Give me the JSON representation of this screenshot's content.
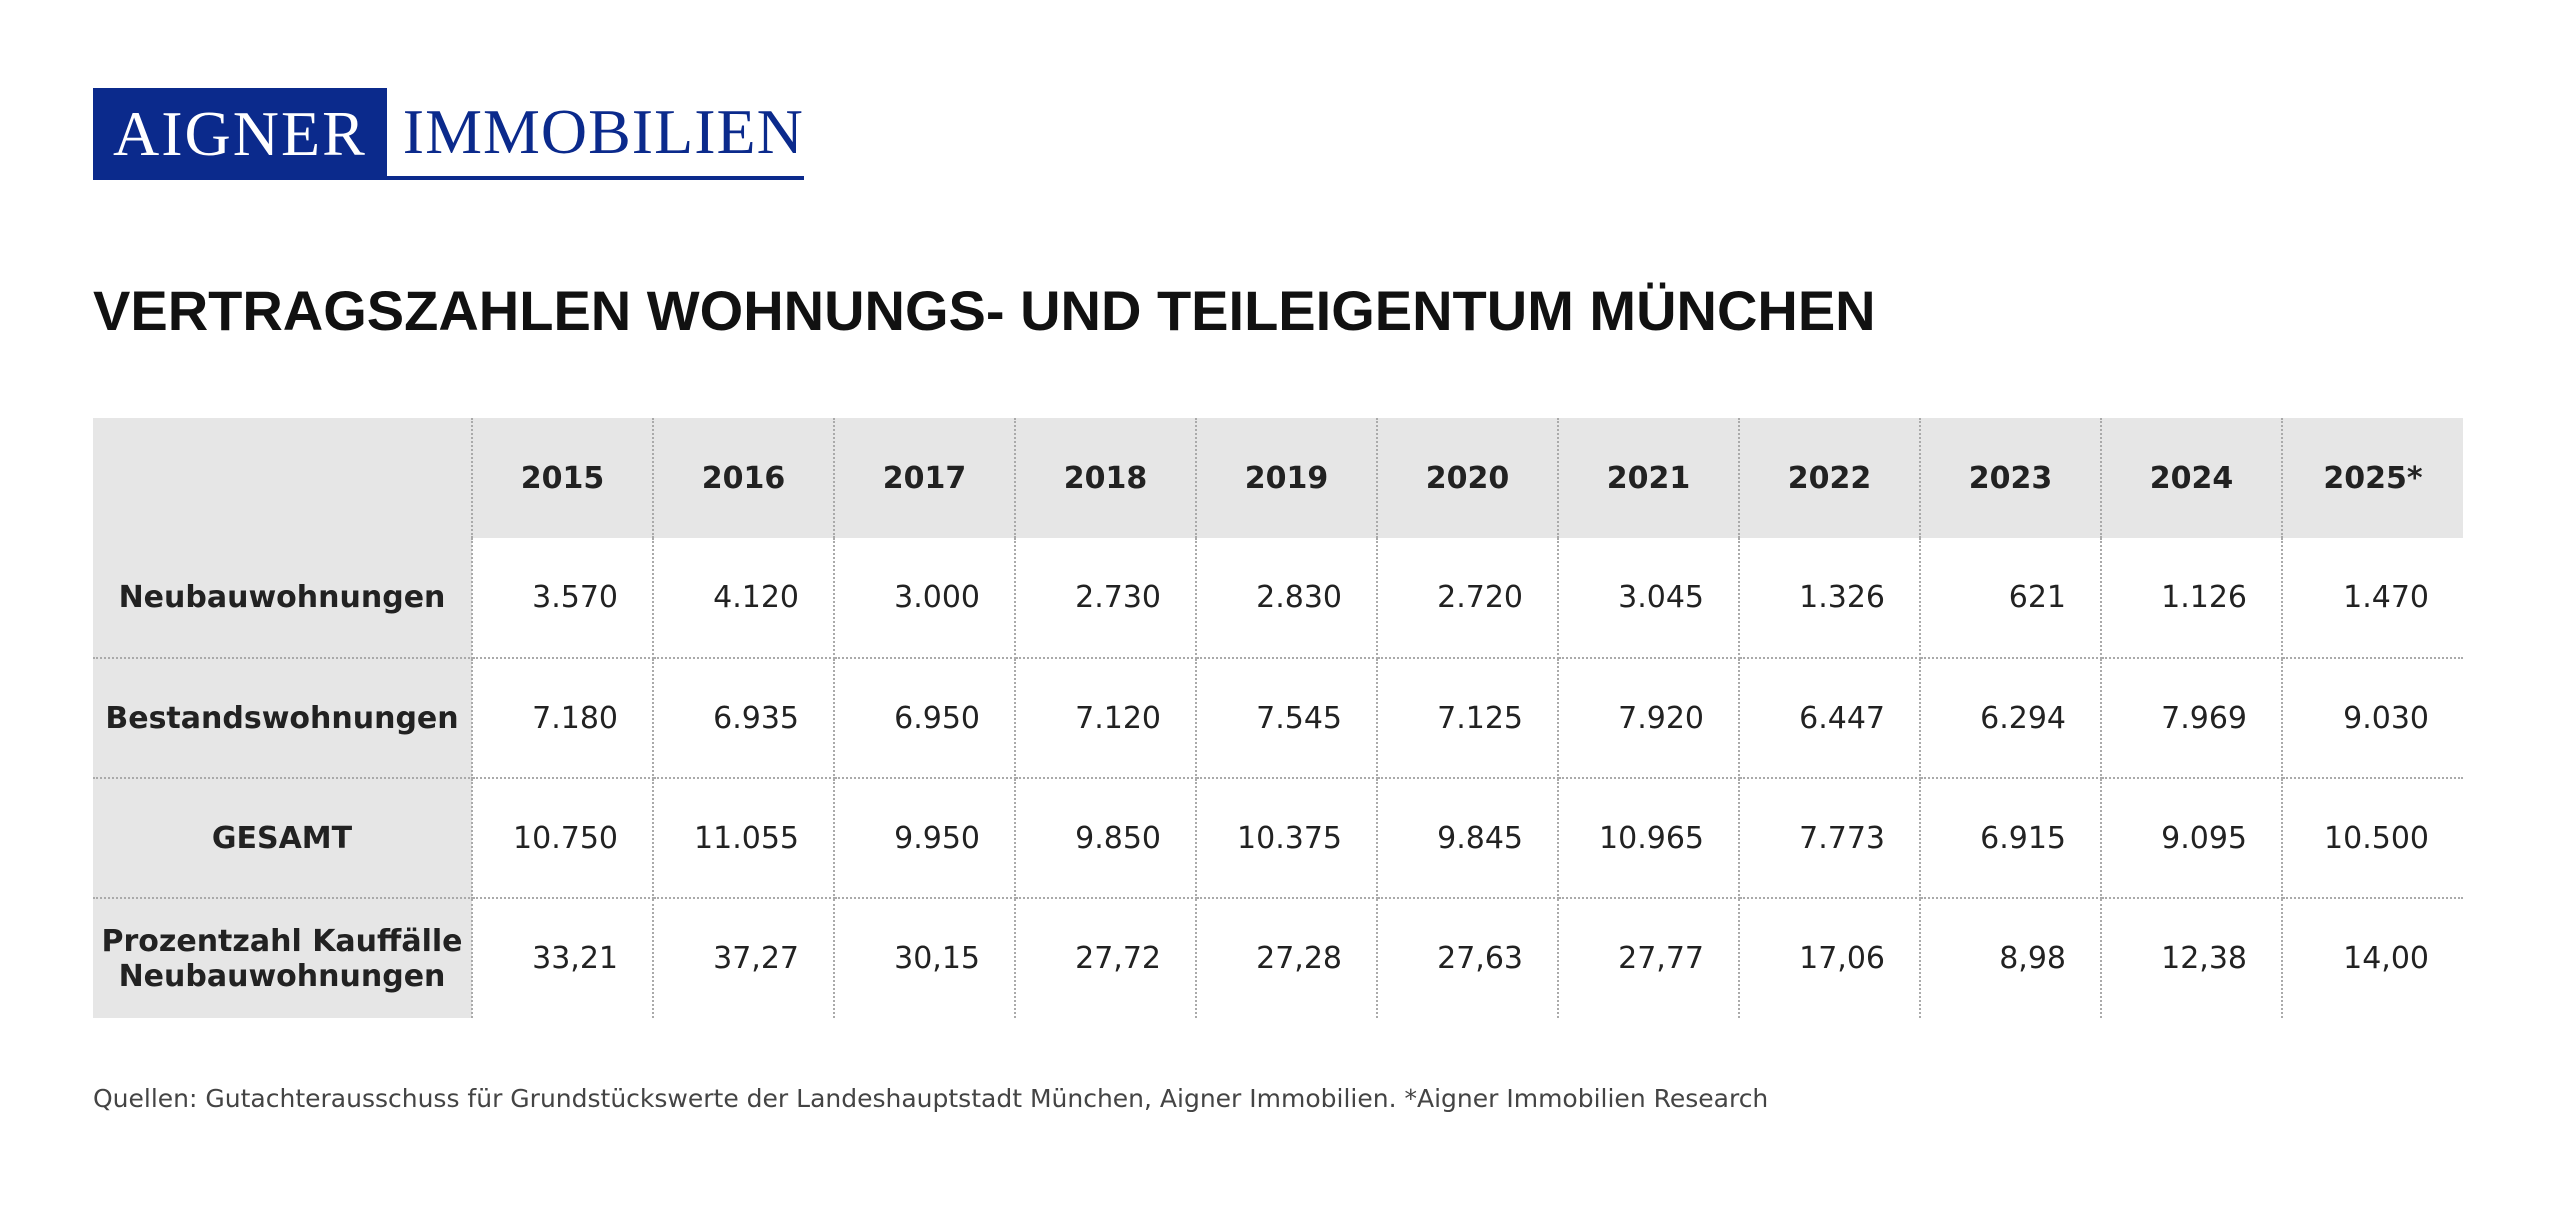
{
  "logo": {
    "left": "AIGNER",
    "right": "IMMOBILIEN"
  },
  "title": "VERTRAGSZAHLEN WOHNUNGS- UND TEILEIGENTUM MÜNCHEN",
  "table": {
    "header": [
      "2015",
      "2016",
      "2017",
      "2018",
      "2019",
      "2020",
      "2021",
      "2022",
      "2023",
      "2024",
      "2025*"
    ],
    "rows": [
      {
        "label": "Neubauwohnungen",
        "cells": [
          "3.570",
          "4.120",
          "3.000",
          "2.730",
          "2.830",
          "2.720",
          "3.045",
          "1.326",
          "621",
          "1.126",
          "1.470"
        ]
      },
      {
        "label": "Bestandswohnungen",
        "cells": [
          "7.180",
          "6.935",
          "6.950",
          "7.120",
          "7.545",
          "7.125",
          "7.920",
          "6.447",
          "6.294",
          "7.969",
          "9.030"
        ]
      },
      {
        "label": "GESAMT",
        "cells": [
          "10.750",
          "11.055",
          "9.950",
          "9.850",
          "10.375",
          "9.845",
          "10.965",
          "7.773",
          "6.915",
          "9.095",
          "10.500"
        ]
      },
      {
        "label": "Prozentzahl Kauffälle Neubauwohnungen",
        "cells": [
          "33,21",
          "37,27",
          "30,15",
          "27,72",
          "27,28",
          "27,63",
          "27,77",
          "17,06",
          "8,98",
          "12,38",
          "14,00"
        ]
      }
    ]
  },
  "footnote": "Quellen: Gutachterausschuss für Grundstückswerte der Landeshauptstadt München, Aigner Immobilien. *Aigner Immobilien Research"
}
